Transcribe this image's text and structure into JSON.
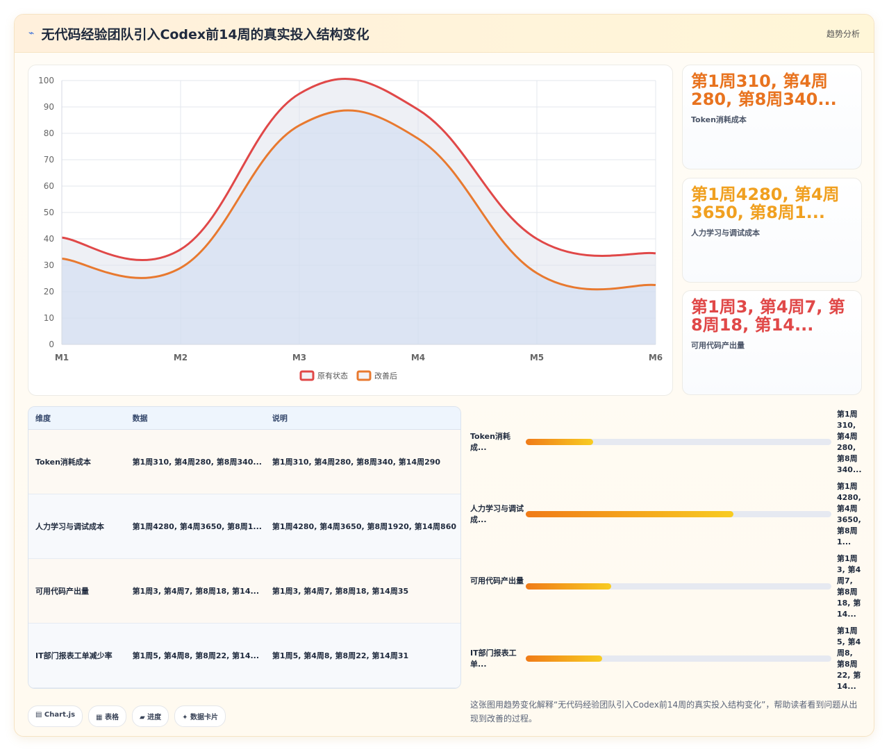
{
  "header": {
    "icon": "⌁",
    "title": "无代码经验团队引入Codex前14周的真实投入结构变化",
    "tag": "趋势分析"
  },
  "chart_data": {
    "type": "line",
    "categories": [
      "M1",
      "M2",
      "M3",
      "M4",
      "M5",
      "M6"
    ],
    "ylim": [
      0,
      100
    ],
    "yticks": [
      0,
      10,
      20,
      30,
      40,
      50,
      60,
      70,
      80,
      90,
      100
    ],
    "grid": true,
    "legend": "bottom",
    "series": [
      {
        "name": "原有状态",
        "color": "#e04848",
        "values": [
          40.5,
          36,
          95,
          89,
          40,
          34.5
        ]
      },
      {
        "name": "改善后",
        "color": "#e8792f",
        "values": [
          32.5,
          29,
          83,
          78,
          27,
          22.5
        ]
      }
    ]
  },
  "cards": [
    {
      "value": "第1周310, 第4周280, 第8周340...",
      "label": "Token消耗成本",
      "color": "#e8731f"
    },
    {
      "value": "第1周4280, 第4周3650, 第8周1...",
      "label": "人力学习与调试成本",
      "color": "#f0a020"
    },
    {
      "value": "第1周3, 第4周7, 第8周18, 第14...",
      "label": "可用代码产出量",
      "color": "#e04848"
    }
  ],
  "table": {
    "columns": [
      "维度",
      "数据",
      "说明"
    ],
    "rows": [
      [
        "Token消耗成本",
        "第1周310, 第4周280, 第8周340...",
        "第1周310, 第4周280, 第8周340, 第14周290"
      ],
      [
        "人力学习与调试成本",
        "第1周4280, 第4周3650, 第8周1...",
        "第1周4280, 第4周3650, 第8周1920, 第14周860"
      ],
      [
        "可用代码产出量",
        "第1周3, 第4周7, 第8周18, 第14...",
        "第1周3, 第4周7, 第8周18, 第14周35"
      ],
      [
        "IT部门报表工单减少率",
        "第1周5, 第4周8, 第8周22, 第14...",
        "第1周5, 第4周8, 第8周22, 第14周31"
      ]
    ]
  },
  "progress": [
    {
      "label": "Token消耗成...",
      "value": 22,
      "text": "第1周310, 第4周280, 第8周340..."
    },
    {
      "label": "人力学习与调试成...",
      "value": 68,
      "text": "第1周4280, 第4周3650, 第8周1..."
    },
    {
      "label": "可用代码产出量",
      "value": 28,
      "text": "第1周3, 第4周7, 第8周18, 第14..."
    },
    {
      "label": "IT部门报表工单...",
      "value": 25,
      "text": "第1周5, 第4周8, 第8周22, 第14..."
    }
  ],
  "tags": [
    "▤ Chart.js",
    "▦ 表格",
    "▰ 进度",
    "✦ 数据卡片"
  ],
  "description": "这张图用趋势变化解释“无代码经验团队引入Codex前14周的真实投入结构变化”，帮助读者看到问题从出现到改善的过程。"
}
